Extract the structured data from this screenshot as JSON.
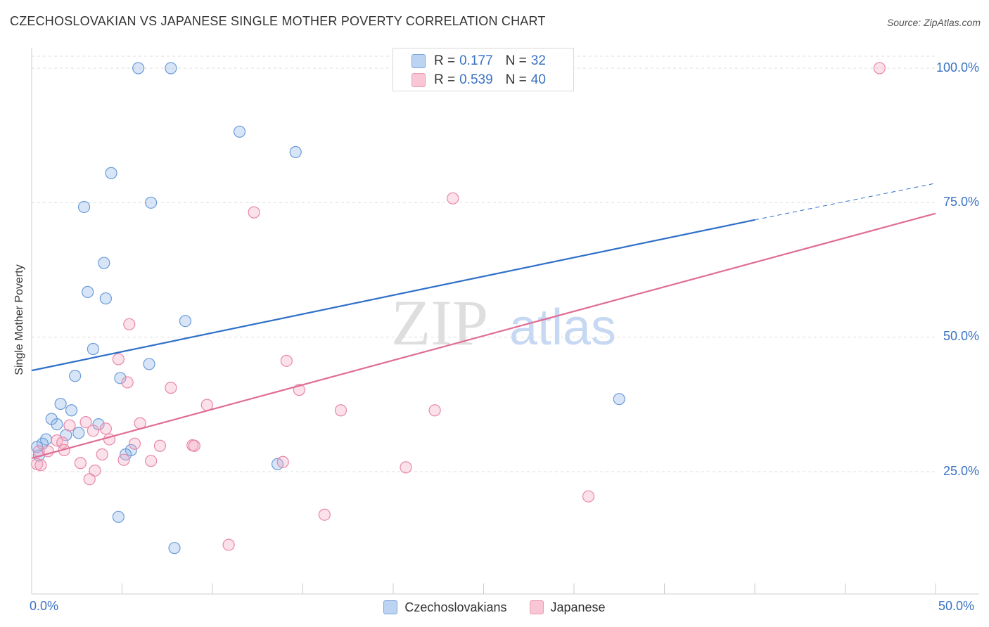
{
  "title": "CZECHOSLOVAKIAN VS JAPANESE SINGLE MOTHER POVERTY CORRELATION CHART",
  "source": "Source: ZipAtlas.com",
  "watermark": {
    "zip": "ZIP",
    "atlas": "atlas"
  },
  "legend_stats": [
    {
      "r_label": "R =",
      "r_value": "0.177",
      "n_label": "N =",
      "n_value": "32"
    },
    {
      "r_label": "R =",
      "r_value": "0.539",
      "n_label": "N =",
      "n_value": "40"
    }
  ],
  "x_tick_labels": {
    "min": "0.0%",
    "max": "50.0%"
  },
  "y_tick_labels": [
    "100.0%",
    "75.0%",
    "50.0%",
    "25.0%"
  ],
  "chart_data": {
    "type": "scatter",
    "title": "CZECHOSLOVAKIAN VS JAPANESE SINGLE MOTHER POVERTY CORRELATION CHART",
    "xlabel": "",
    "ylabel": "Single Mother Poverty",
    "xlim": [
      0,
      50
    ],
    "ylim": [
      0,
      102
    ],
    "y_ticks": [
      25,
      50,
      75,
      100
    ],
    "grid": true,
    "legend_position": "bottom-center",
    "series": [
      {
        "name": "Czechoslovakians",
        "color": "#8fb4e8",
        "stroke": "#6b9bd8",
        "line_color": "#2f6fc9",
        "trend": {
          "x0": 0,
          "y0": 43.8,
          "x1": 40,
          "y1": 71.8,
          "dash_to_x": 50,
          "dash_to_y": 78.6
        },
        "points": [
          [
            5.9,
            100.0
          ],
          [
            7.7,
            100.0
          ],
          [
            11.5,
            88.2
          ],
          [
            14.6,
            84.4
          ],
          [
            4.4,
            80.5
          ],
          [
            2.9,
            74.2
          ],
          [
            6.6,
            75.0
          ],
          [
            4.0,
            63.8
          ],
          [
            3.1,
            58.4
          ],
          [
            4.1,
            57.2
          ],
          [
            8.5,
            53.0
          ],
          [
            3.4,
            47.8
          ],
          [
            6.5,
            45.0
          ],
          [
            2.4,
            42.8
          ],
          [
            4.9,
            42.4
          ],
          [
            32.5,
            38.5
          ],
          [
            1.6,
            37.6
          ],
          [
            2.2,
            36.4
          ],
          [
            1.1,
            34.8
          ],
          [
            1.4,
            33.8
          ],
          [
            3.7,
            33.8
          ],
          [
            2.6,
            32.2
          ],
          [
            1.9,
            31.8
          ],
          [
            0.8,
            31.0
          ],
          [
            0.6,
            30.2
          ],
          [
            0.3,
            29.6
          ],
          [
            5.5,
            29.0
          ],
          [
            5.2,
            28.2
          ],
          [
            0.4,
            28.0
          ],
          [
            13.6,
            26.4
          ],
          [
            4.8,
            16.6
          ],
          [
            7.9,
            10.8
          ]
        ]
      },
      {
        "name": "Japanese",
        "color": "#f4a9c2",
        "stroke": "#e888a8",
        "line_color": "#e06c94",
        "trend": {
          "x0": 0,
          "y0": 27.5,
          "x1": 50,
          "y1": 73.0
        },
        "points": [
          [
            46.9,
            100.0
          ],
          [
            23.3,
            75.8
          ],
          [
            12.3,
            73.2
          ],
          [
            5.4,
            52.4
          ],
          [
            4.8,
            45.9
          ],
          [
            14.1,
            45.6
          ],
          [
            5.3,
            41.6
          ],
          [
            7.7,
            40.6
          ],
          [
            14.8,
            40.2
          ],
          [
            9.7,
            37.4
          ],
          [
            17.1,
            36.4
          ],
          [
            22.3,
            36.4
          ],
          [
            3.0,
            34.2
          ],
          [
            6.0,
            34.0
          ],
          [
            2.1,
            33.6
          ],
          [
            4.1,
            33.0
          ],
          [
            3.4,
            32.6
          ],
          [
            4.3,
            31.0
          ],
          [
            1.4,
            30.8
          ],
          [
            1.7,
            30.4
          ],
          [
            5.7,
            30.2
          ],
          [
            7.1,
            29.8
          ],
          [
            8.9,
            29.9
          ],
          [
            9.0,
            29.8
          ],
          [
            1.8,
            29.0
          ],
          [
            0.4,
            28.8
          ],
          [
            0.9,
            28.8
          ],
          [
            3.9,
            28.2
          ],
          [
            5.1,
            27.2
          ],
          [
            6.6,
            27.0
          ],
          [
            0.3,
            26.4
          ],
          [
            2.7,
            26.6
          ],
          [
            13.9,
            26.8
          ],
          [
            20.7,
            25.8
          ],
          [
            0.5,
            26.2
          ],
          [
            3.5,
            25.2
          ],
          [
            3.2,
            23.6
          ],
          [
            30.8,
            20.4
          ],
          [
            16.2,
            17.0
          ],
          [
            10.9,
            11.4
          ]
        ]
      }
    ]
  }
}
